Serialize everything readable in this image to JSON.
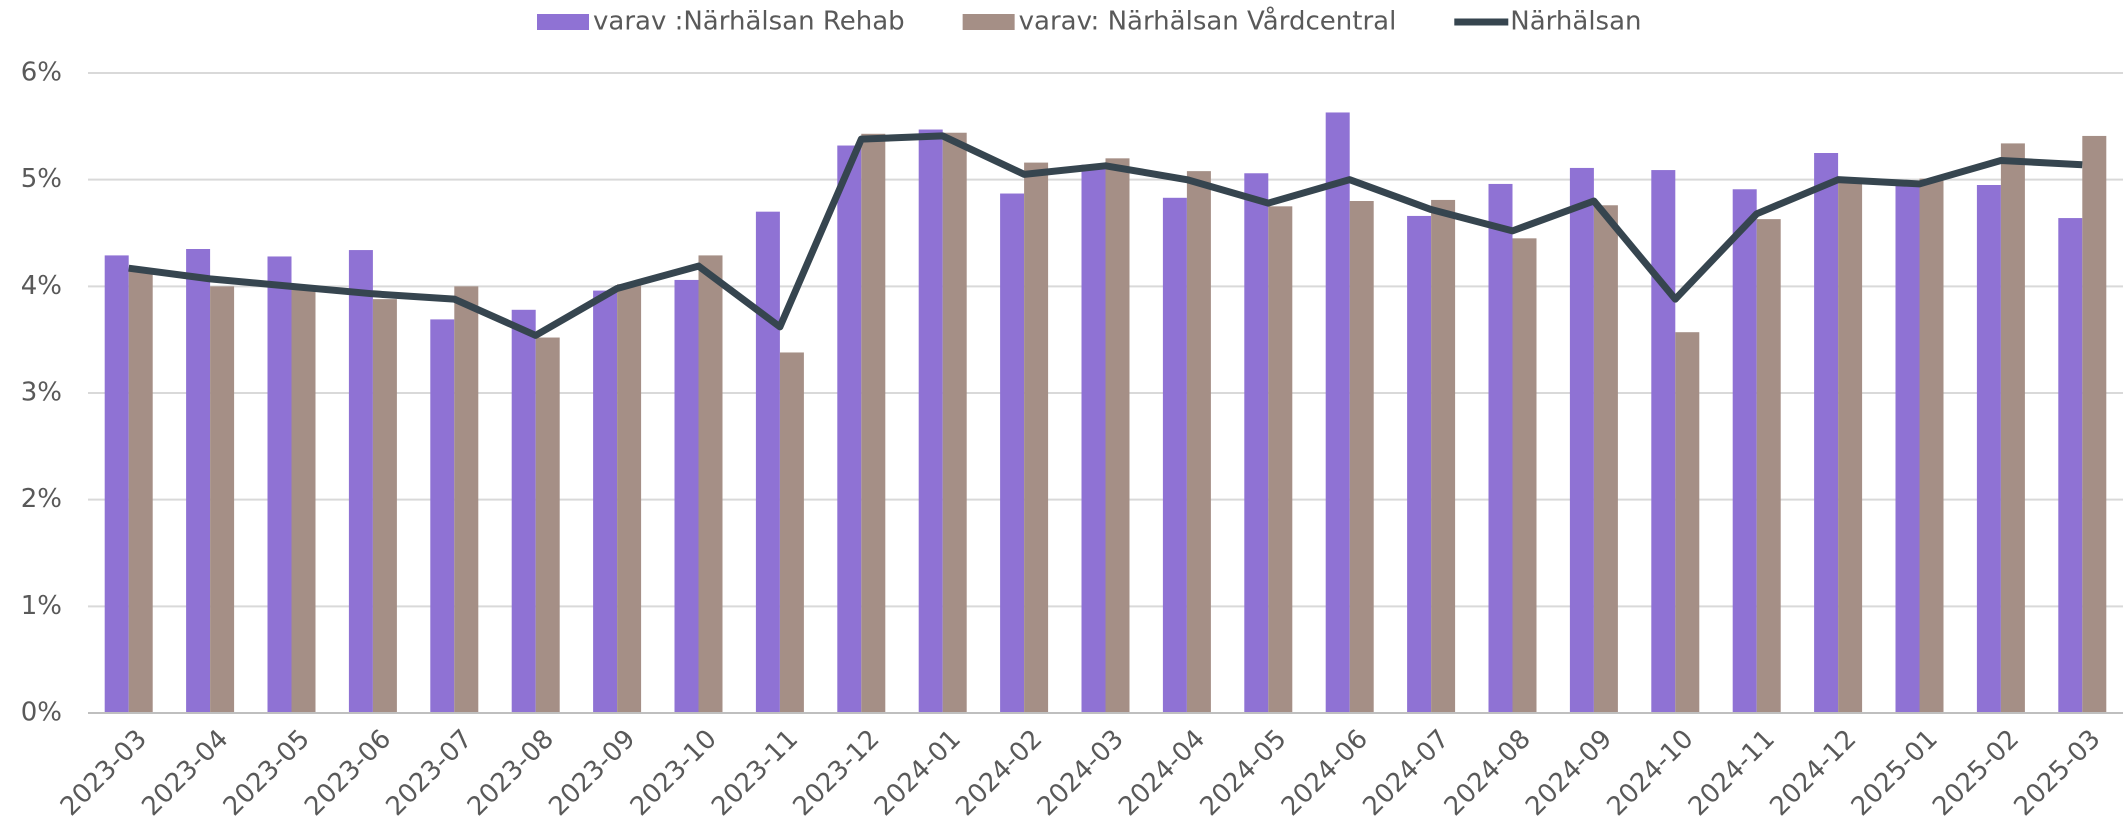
{
  "chart_data": {
    "type": "bar_line",
    "categories": [
      "2023-03",
      "2023-04",
      "2023-05",
      "2023-06",
      "2023-07",
      "2023-08",
      "2023-09",
      "2023-10",
      "2023-11",
      "2023-12",
      "2024-01",
      "2024-02",
      "2024-03",
      "2024-04",
      "2024-05",
      "2024-06",
      "2024-07",
      "2024-08",
      "2024-09",
      "2024-10",
      "2024-11",
      "2024-12",
      "2025-01",
      "2025-02",
      "2025-03"
    ],
    "series": [
      {
        "name": "varav :Närhälsan Rehab",
        "type": "bar",
        "color": "#8f72d4",
        "values": [
          4.29,
          4.35,
          4.28,
          4.34,
          3.69,
          3.78,
          3.96,
          4.06,
          4.7,
          5.32,
          5.47,
          4.87,
          5.14,
          4.83,
          5.06,
          5.63,
          4.66,
          4.96,
          5.11,
          5.09,
          4.91,
          5.25,
          4.99,
          4.95,
          4.64
        ]
      },
      {
        "name": "varav: Närhälsan Vårdcentral",
        "type": "bar",
        "color": "#a58f86",
        "values": [
          4.15,
          4.0,
          3.98,
          3.88,
          4.0,
          3.52,
          4.02,
          4.29,
          3.38,
          5.43,
          5.44,
          5.16,
          5.2,
          5.08,
          4.75,
          4.8,
          4.81,
          4.45,
          4.76,
          3.57,
          4.63,
          4.99,
          5.01,
          5.34,
          5.41
        ]
      },
      {
        "name": "Närhälsan",
        "type": "line",
        "color": "#36454f",
        "values": [
          4.17,
          4.07,
          4.0,
          3.93,
          3.88,
          3.54,
          3.98,
          4.19,
          3.62,
          5.38,
          5.41,
          5.05,
          5.13,
          5.0,
          4.78,
          5.0,
          4.72,
          4.52,
          4.8,
          3.88,
          4.68,
          5.0,
          4.96,
          5.18,
          5.14
        ]
      }
    ],
    "ylim": [
      0,
      6
    ],
    "yticks": [
      {
        "value": 0,
        "label": "0%"
      },
      {
        "value": 1,
        "label": "1%"
      },
      {
        "value": 2,
        "label": "2%"
      },
      {
        "value": 3,
        "label": "3%"
      },
      {
        "value": 4,
        "label": "4%"
      },
      {
        "value": 5,
        "label": "5%"
      },
      {
        "value": 6,
        "label": "6%"
      }
    ],
    "grid": true,
    "legend": "top"
  }
}
